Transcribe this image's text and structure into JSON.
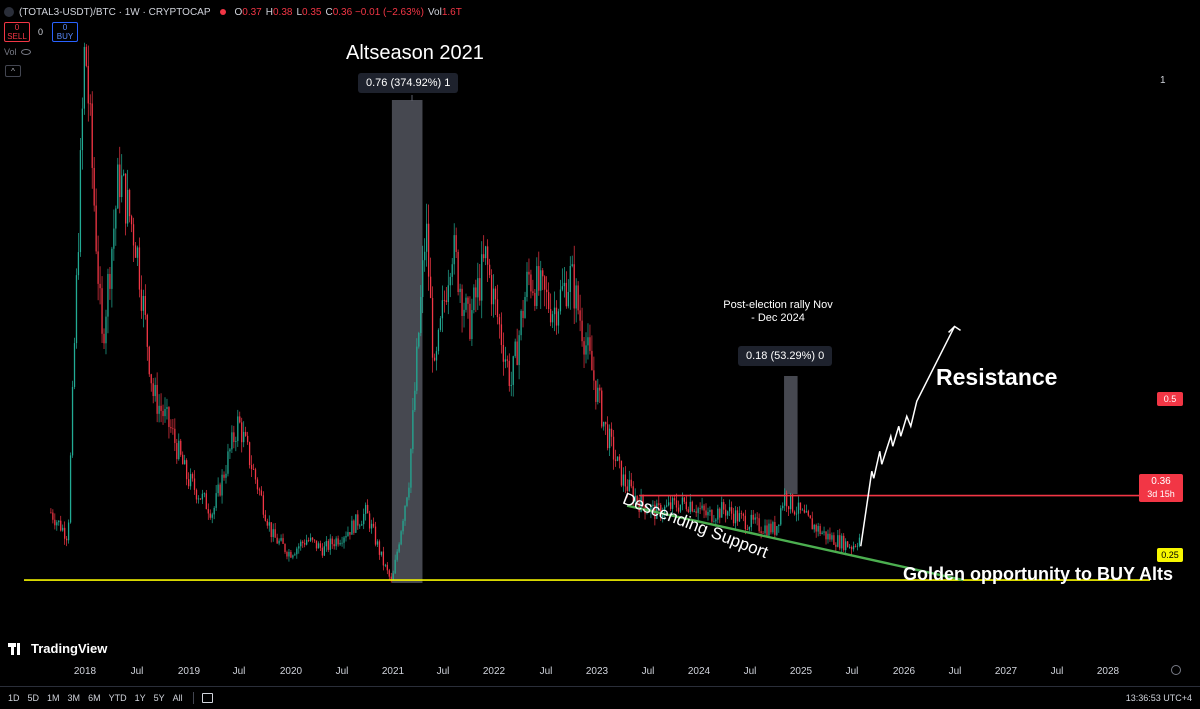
{
  "header": {
    "symbol": "(TOTAL3-USDT)/BTC · 1W · CRYPTOCAP",
    "ohlc": [
      {
        "label": "O",
        "value": "0.37"
      },
      {
        "label": "H",
        "value": "0.38"
      },
      {
        "label": "L",
        "value": "0.35"
      },
      {
        "label": "C",
        "value": "0.36 −0.01 (−2.63%)"
      }
    ],
    "volume_label": "Vol",
    "volume_value": "1.6T"
  },
  "trade": {
    "sell_price": "0",
    "sell_label": "SELL",
    "spread": "0",
    "buy_price": "0",
    "buy_label": "BUY"
  },
  "volume_row": {
    "label": "Vol"
  },
  "collapse_glyph": "^",
  "pane_number": "1",
  "annotations": {
    "altseason": "Altseason 2021",
    "measure_2021": "0.76 (374.92%) 1",
    "post_election": "Post-election rally Nov - Dec 2024",
    "measure_2024": "0.18 (53.29%) 0",
    "resistance": "Resistance",
    "support": "Descending Support",
    "golden": "Golden opportunity to BUY Alts"
  },
  "price_tags": {
    "resistance": "0.5",
    "current_price": "0.36",
    "current_countdown": "3d 15h",
    "golden": "0.25"
  },
  "logo_text": "TradingView",
  "x_axis": [
    "2018",
    "Jul",
    "2019",
    "Jul",
    "2020",
    "Jul",
    "2021",
    "Jul",
    "2022",
    "Jul",
    "2023",
    "Jul",
    "2024",
    "Jul",
    "2025",
    "Jul",
    "2026",
    "Jul",
    "2027",
    "Jul",
    "2028"
  ],
  "timeframes": [
    "1D",
    "5D",
    "1M",
    "3M",
    "6M",
    "YTD",
    "1Y",
    "5Y",
    "All"
  ],
  "clock": "13:36:53 UTC+4",
  "colors": {
    "up": "#22ab94",
    "down": "#f23645",
    "resistance": "#f23645",
    "golden": "#f7f700",
    "support": "#4caf50",
    "highlight": "#5d606b"
  },
  "chart_data": {
    "type": "candlestick",
    "ylim": [
      0.2,
      1.9
    ],
    "x_start": "2017-09",
    "x_end": "2028-04",
    "levels": [
      {
        "name": "Resistance",
        "value": 0.5
      },
      {
        "name": "Golden opportunity to BUY Alts",
        "value": 0.25
      }
    ],
    "trendline": {
      "name": "Descending Support",
      "from": [
        "2023-06",
        0.47
      ],
      "to": [
        "2026-08",
        0.25
      ]
    },
    "highlights": [
      {
        "name": "Altseason 2021",
        "from": "2021-01",
        "to": "2021-04",
        "change": "0.76 (374.92%)"
      },
      {
        "name": "Post-election rally",
        "from": "2024-11",
        "to": "2024-12",
        "change": "0.18 (53.29%)"
      }
    ],
    "projection": {
      "from": [
        "2025-08",
        0.35
      ],
      "to": [
        "2026-07",
        1.0
      ]
    },
    "close_path": [
      [
        "2017-09",
        0.45
      ],
      [
        "2017-11",
        0.38
      ],
      [
        "2018-01",
        1.85
      ],
      [
        "2018-03",
        0.95
      ],
      [
        "2018-05",
        1.45
      ],
      [
        "2018-07",
        1.25
      ],
      [
        "2018-09",
        0.8
      ],
      [
        "2018-11",
        0.7
      ],
      [
        "2019-01",
        0.55
      ],
      [
        "2019-04",
        0.45
      ],
      [
        "2019-07",
        0.72
      ],
      [
        "2019-09",
        0.55
      ],
      [
        "2019-11",
        0.38
      ],
      [
        "2020-01",
        0.33
      ],
      [
        "2020-03",
        0.37
      ],
      [
        "2020-05",
        0.34
      ],
      [
        "2020-08",
        0.4
      ],
      [
        "2020-10",
        0.45
      ],
      [
        "2020-12",
        0.3
      ],
      [
        "2021-01",
        0.24
      ],
      [
        "2021-03",
        0.55
      ],
      [
        "2021-05",
        1.3
      ],
      [
        "2021-06",
        0.85
      ],
      [
        "2021-08",
        1.25
      ],
      [
        "2021-10",
        1.0
      ],
      [
        "2021-12",
        1.2
      ],
      [
        "2022-02",
        0.95
      ],
      [
        "2022-03",
        0.83
      ],
      [
        "2022-05",
        1.15
      ],
      [
        "2022-08",
        1.05
      ],
      [
        "2022-10",
        1.15
      ],
      [
        "2022-12",
        0.92
      ],
      [
        "2023-02",
        0.7
      ],
      [
        "2023-04",
        0.55
      ],
      [
        "2023-06",
        0.48
      ],
      [
        "2023-08",
        0.45
      ],
      [
        "2023-10",
        0.47
      ],
      [
        "2023-12",
        0.48
      ],
      [
        "2024-02",
        0.44
      ],
      [
        "2024-04",
        0.46
      ],
      [
        "2024-06",
        0.43
      ],
      [
        "2024-08",
        0.41
      ],
      [
        "2024-10",
        0.4
      ],
      [
        "2024-11",
        0.5
      ],
      [
        "2024-12",
        0.47
      ],
      [
        "2025-02",
        0.42
      ],
      [
        "2025-04",
        0.38
      ],
      [
        "2025-06",
        0.36
      ],
      [
        "2025-07",
        0.35
      ],
      [
        "2025-08",
        0.38
      ],
      [
        "2025-08",
        0.36
      ]
    ]
  }
}
